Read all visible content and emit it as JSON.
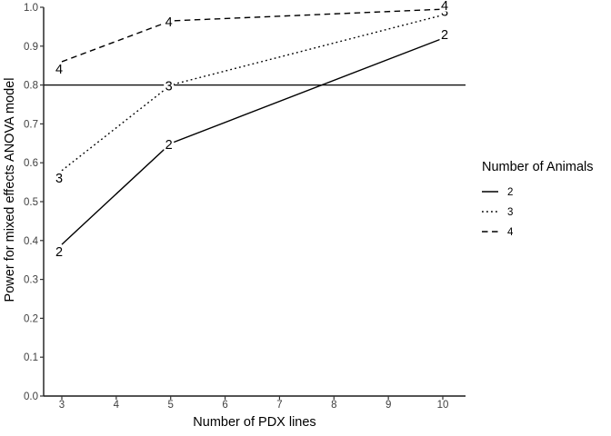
{
  "colors": {
    "line": "#000000",
    "axis": "#1a1a1a",
    "tick": "#333333",
    "text": "#000000",
    "background": "#ffffff"
  },
  "chart_data": {
    "type": "line",
    "title": "",
    "xlabel": "Number of PDX lines",
    "ylabel": "Power for mixed effects ANOVA model",
    "x": [
      3,
      5,
      10
    ],
    "x_ticks": [
      "3",
      "4",
      "5",
      "6",
      "7",
      "8",
      "9",
      "10"
    ],
    "y_ticks": [
      "0.0",
      "0.1",
      "0.2",
      "0.3",
      "0.4",
      "0.5",
      "0.6",
      "0.7",
      "0.8",
      "0.9",
      "1.0"
    ],
    "xlim": [
      3,
      10
    ],
    "ylim": [
      0,
      1
    ],
    "grid": false,
    "reference_line_y": 0.8,
    "direct_labels": true,
    "series": [
      {
        "name": "2",
        "linetype": "solid",
        "values": [
          0.39,
          0.65,
          0.92
        ]
      },
      {
        "name": "3",
        "linetype": "dotted",
        "values": [
          0.58,
          0.8,
          0.98
        ]
      },
      {
        "name": "4",
        "linetype": "dashed",
        "values": [
          0.86,
          0.965,
          0.995
        ]
      }
    ],
    "legend": {
      "title": "Number of Animals",
      "position": "right",
      "entries": [
        "2",
        "3",
        "4"
      ]
    }
  }
}
